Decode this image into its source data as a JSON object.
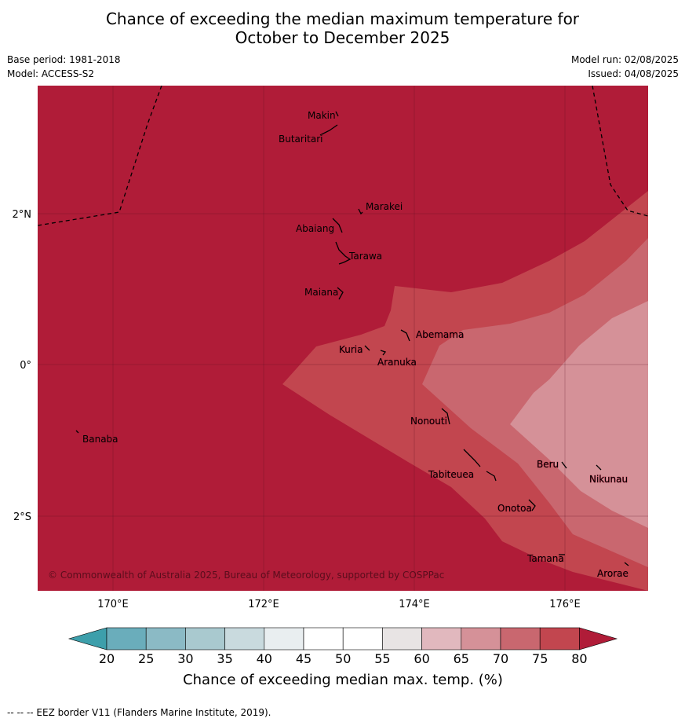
{
  "title": {
    "line1": "Chance of exceeding the median maximum temperature for",
    "line2": "October to December 2025"
  },
  "meta": {
    "base_period": "Base period: 1981-2018",
    "model": "Model: ACCESS-S2",
    "model_run": "Model run: 02/08/2025",
    "issued": "Issued: 04/08/2025"
  },
  "map": {
    "lon_labels": [
      "170°E",
      "172°E",
      "174°E",
      "176°E"
    ],
    "lat_labels": [
      "2°N",
      "0°",
      "2°S"
    ],
    "places": [
      "Makin",
      "Butaritari",
      "Marakei",
      "Abaiang",
      "Tarawa",
      "Maiana",
      "Abemama",
      "Kuria",
      "Aranuka",
      "Nonouti",
      "Banaba",
      "Beru",
      "Tabiteuea",
      "Nikunau",
      "Onotoa",
      "Tamana",
      "Arorae"
    ],
    "copyright": "© Commonwealth of Australia 2025, Bureau of Meteorology, supported by COSPPac",
    "colors": {
      "gt80": "#b01c38",
      "75_80": "#c2464f",
      "70_75": "#c9676f",
      "65_70": "#d59198"
    }
  },
  "colorbar": {
    "ticks": [
      "20",
      "25",
      "30",
      "35",
      "40",
      "45",
      "50",
      "55",
      "60",
      "65",
      "70",
      "75",
      "80"
    ],
    "colors": [
      "#3d9fab",
      "#6aadbb",
      "#8bbac5",
      "#a9c9cf",
      "#c9dade",
      "#e9eef0",
      "#ffffff",
      "#ffffff",
      "#e8e4e4",
      "#e1b8be",
      "#d59198",
      "#c9676f",
      "#c2464f",
      "#b01c38"
    ],
    "label": "Chance of exceeding median max. temp. (%)"
  },
  "footnote": "--  --  -- EEZ border V11 (Flanders Marine Institute, 2019)."
}
